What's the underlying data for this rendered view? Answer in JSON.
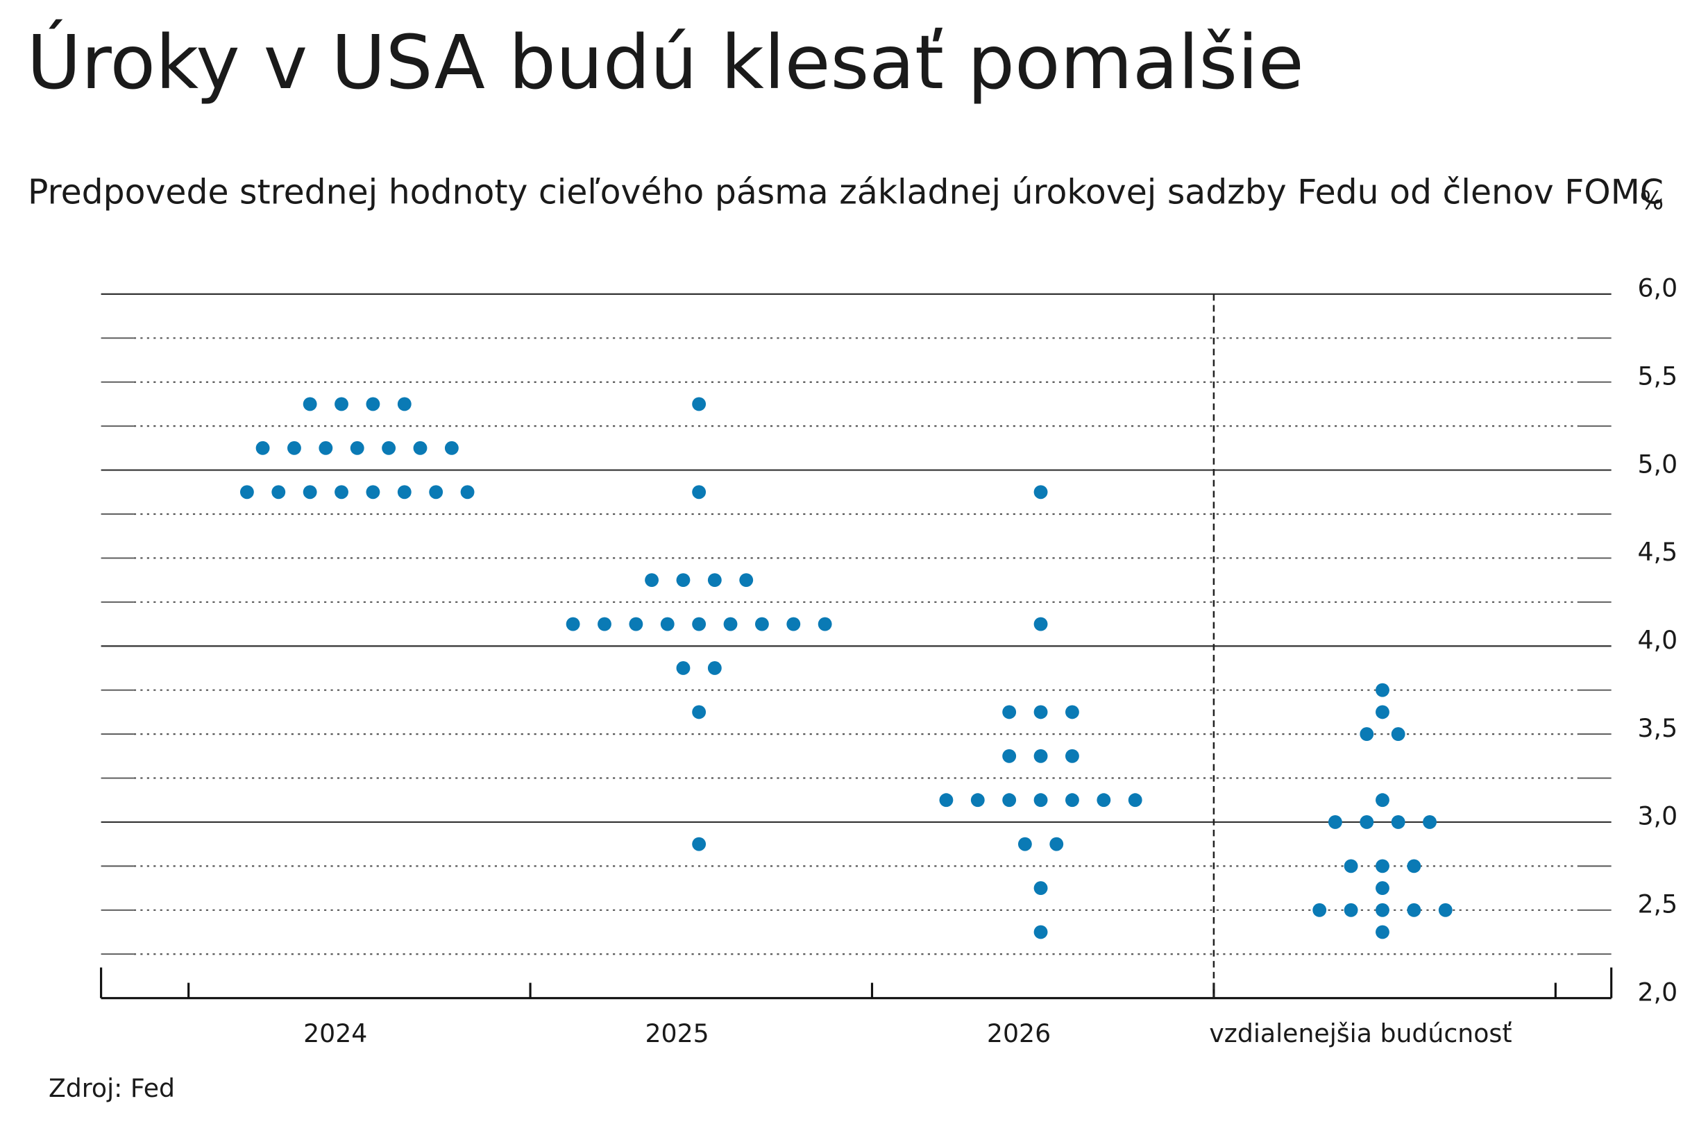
{
  "chart_data": {
    "type": "dot",
    "title": "Úroky v USA budú klesať pomalšie",
    "subtitle": "Predpovede strednej hodnoty cieľového pásma základnej úrokovej sadzby Fedu od členov FOMC",
    "y_unit": "%",
    "source": "Zdroj: Fed",
    "color": "#0a7ab5",
    "categories": [
      "2024",
      "2025",
      "2026",
      "vzdialenejšia budúcnosť"
    ],
    "values": [
      [
        5.375,
        5.375,
        5.375,
        5.375,
        5.125,
        5.125,
        5.125,
        5.125,
        5.125,
        5.125,
        5.125,
        4.875,
        4.875,
        4.875,
        4.875,
        4.875,
        4.875,
        4.875,
        4.875
      ],
      [
        5.375,
        4.875,
        4.375,
        4.375,
        4.375,
        4.375,
        4.125,
        4.125,
        4.125,
        4.125,
        4.125,
        4.125,
        4.125,
        4.125,
        4.125,
        3.875,
        3.875,
        3.625,
        2.875
      ],
      [
        4.875,
        4.125,
        3.625,
        3.625,
        3.625,
        3.375,
        3.375,
        3.375,
        3.125,
        3.125,
        3.125,
        3.125,
        3.125,
        3.125,
        3.125,
        2.875,
        2.875,
        2.625,
        2.375
      ],
      [
        3.75,
        3.625,
        3.5,
        3.5,
        3.125,
        3,
        3,
        3,
        3,
        2.75,
        2.75,
        2.75,
        2.625,
        2.5,
        2.5,
        2.5,
        2.5,
        2.5,
        2.375
      ]
    ],
    "ylim": [
      2,
      6
    ],
    "yticks": [
      {
        "value": 2,
        "label": "2,0"
      },
      {
        "value": 2.5,
        "label": "2,5"
      },
      {
        "value": 3,
        "label": "3,0"
      },
      {
        "value": 3.5,
        "label": "3,5"
      },
      {
        "value": 4,
        "label": "4,0"
      },
      {
        "value": 4.5,
        "label": "4,5"
      },
      {
        "value": 5,
        "label": "5,0"
      },
      {
        "value": 5.5,
        "label": "5,5"
      },
      {
        "value": 6,
        "label": "6,0"
      }
    ],
    "y_minor_grid": [
      2.25,
      2.75,
      3.25,
      3.75,
      4.25,
      4.75,
      5.25,
      5.75
    ],
    "grid": true
  }
}
